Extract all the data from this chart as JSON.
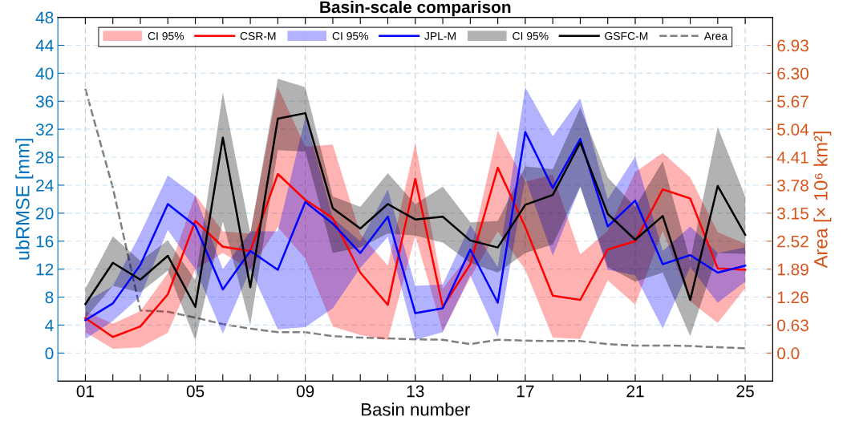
{
  "chart_data": {
    "type": "line",
    "title": "Basin-scale comparison",
    "xlabel": "Basin number",
    "ylabel": "ubRMSE [mm]",
    "y2label": "Area [× 10⁶ km²]",
    "annotations": [
      "CI 95%",
      "CI 95%",
      "CI 95%"
    ],
    "x": [
      1,
      2,
      3,
      4,
      5,
      6,
      7,
      8,
      9,
      10,
      11,
      12,
      13,
      14,
      15,
      16,
      17,
      18,
      19,
      20,
      21,
      22,
      23,
      24,
      25
    ],
    "xlim": [
      0,
      26
    ],
    "xticks": [
      {
        "value": 1,
        "label": "01"
      },
      {
        "value": 2,
        "label": null
      },
      {
        "value": 3,
        "label": null
      },
      {
        "value": 4,
        "label": null
      },
      {
        "value": 5,
        "label": "05"
      },
      {
        "value": 6,
        "label": null
      },
      {
        "value": 7,
        "label": null
      },
      {
        "value": 8,
        "label": null
      },
      {
        "value": 9,
        "label": "09"
      },
      {
        "value": 10,
        "label": null
      },
      {
        "value": 11,
        "label": null
      },
      {
        "value": 12,
        "label": null
      },
      {
        "value": 13,
        "label": "13"
      },
      {
        "value": 14,
        "label": null
      },
      {
        "value": 15,
        "label": null
      },
      {
        "value": 16,
        "label": null
      },
      {
        "value": 17,
        "label": "17"
      },
      {
        "value": 18,
        "label": null
      },
      {
        "value": 19,
        "label": null
      },
      {
        "value": 20,
        "label": null
      },
      {
        "value": 21,
        "label": "21"
      },
      {
        "value": 22,
        "label": null
      },
      {
        "value": 23,
        "label": null
      },
      {
        "value": 24,
        "label": null
      },
      {
        "value": 25,
        "label": "25"
      }
    ],
    "ylim": [
      -4,
      48
    ],
    "yticks": [
      0,
      4,
      8,
      12,
      16,
      20,
      24,
      28,
      32,
      36,
      40,
      44,
      48
    ],
    "y2lim": [
      -0.63,
      7.56
    ],
    "y2ticks": [
      {
        "value": 0,
        "label": "0.0"
      },
      0.63,
      1.26,
      1.89,
      2.52,
      3.15,
      3.78,
      4.41,
      5.04,
      5.67,
      {
        "value": 6.3,
        "label": "6.30"
      },
      6.93
    ],
    "grid": true,
    "legend": "top",
    "marker": "none",
    "series": [
      {
        "name": "CSR-M",
        "color": "#ff0000",
        "values": [
          5.0,
          2.3,
          3.8,
          8.4,
          18.9,
          15.2,
          14.6,
          25.6,
          21.9,
          19.3,
          11.5,
          6.9,
          24.9,
          6.6,
          12.7,
          26.5,
          18.0,
          8.2,
          7.6,
          14.8,
          16.0,
          23.4,
          22.1,
          12.1,
          11.9
        ],
        "lower": [
          3.0,
          0.6,
          0.8,
          2.9,
          12.0,
          14.3,
          12.0,
          18.0,
          13.5,
          3.8,
          2.6,
          1.9,
          16.8,
          3.1,
          10.8,
          17.4,
          11.9,
          2.2,
          2.0,
          10.4,
          6.9,
          17.5,
          7.4,
          4.3,
          9.3
        ],
        "upper": [
          6.0,
          4.2,
          6.0,
          11.4,
          22.6,
          17.4,
          17.1,
          38.0,
          29.5,
          29.8,
          17.0,
          12.5,
          30.0,
          9.2,
          14.3,
          31.8,
          24.5,
          25.5,
          14.1,
          17.5,
          25.9,
          28.6,
          25.1,
          17.3,
          15.6
        ]
      },
      {
        "name": "JPL-M",
        "color": "#0000ff",
        "values": [
          4.7,
          7.1,
          12.6,
          21.3,
          18.2,
          9.1,
          14.6,
          11.9,
          21.6,
          18.5,
          14.3,
          19.5,
          5.7,
          6.4,
          14.8,
          7.2,
          31.6,
          23.6,
          30.6,
          18.1,
          21.8,
          12.7,
          14.0,
          11.5,
          12.5
        ],
        "lower": [
          2.0,
          4.6,
          8.1,
          17.6,
          12.0,
          2.8,
          12.0,
          3.4,
          3.7,
          6.4,
          12.2,
          16.6,
          1.9,
          3.0,
          11.1,
          2.3,
          25.0,
          13.9,
          23.8,
          11.9,
          11.1,
          3.5,
          12.3,
          7.2,
          10.2
        ],
        "upper": [
          7.3,
          9.6,
          17.1,
          25.4,
          22.5,
          12.0,
          17.4,
          17.4,
          33.7,
          19.3,
          16.0,
          23.4,
          9.6,
          9.8,
          18.3,
          12.3,
          38.0,
          31.0,
          36.4,
          22.0,
          28.1,
          14.6,
          18.1,
          14.3,
          15.1
        ]
      },
      {
        "name": "GSFC-M",
        "color": "#000000",
        "values": [
          7.0,
          12.9,
          10.5,
          13.9,
          6.6,
          30.8,
          9.4,
          33.5,
          34.3,
          20.7,
          17.8,
          21.3,
          19.1,
          19.5,
          16.1,
          15.1,
          21.2,
          22.6,
          30.1,
          19.9,
          16.2,
          19.6,
          7.6,
          23.9,
          16.9
        ],
        "lower": [
          5.0,
          9.6,
          8.7,
          11.8,
          1.8,
          18.8,
          4.0,
          29.0,
          28.8,
          14.3,
          15.1,
          17.1,
          16.8,
          15.8,
          12.9,
          11.5,
          14.3,
          15.5,
          23.8,
          12.3,
          10.2,
          11.5,
          2.4,
          14.3,
          14.2
        ],
        "upper": [
          9.2,
          16.7,
          13.2,
          16.1,
          10.4,
          37.3,
          17.1,
          39.2,
          38.0,
          22.4,
          20.9,
          25.7,
          21.3,
          23.8,
          18.7,
          18.9,
          26.7,
          26.3,
          35.1,
          25.1,
          20.9,
          27.4,
          13.2,
          32.3,
          22.4
        ]
      },
      {
        "name": "Area",
        "color": "#808080",
        "axis": "y2",
        "line_style": "dashed",
        "values": [
          5.95,
          3.72,
          0.96,
          0.93,
          0.8,
          0.65,
          0.55,
          0.47,
          0.47,
          0.38,
          0.35,
          0.33,
          0.31,
          0.3,
          0.2,
          0.3,
          0.28,
          0.27,
          0.27,
          0.2,
          0.17,
          0.17,
          0.16,
          0.13,
          0.11
        ]
      }
    ]
  }
}
